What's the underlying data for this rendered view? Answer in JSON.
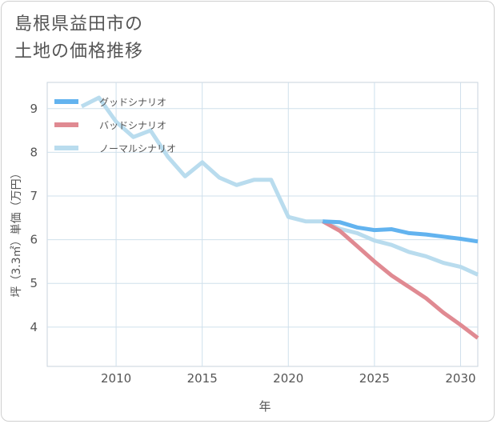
{
  "title_lines": [
    "島根県益田市の",
    "土地の価格推移"
  ],
  "chart_data": {
    "type": "line",
    "title": "島根県益田市の土地の価格推移",
    "xlabel": "年",
    "ylabel": "坪（3.3㎡）単価（万円）",
    "xlim": [
      2006,
      2031
    ],
    "ylim": [
      3.1,
      9.6
    ],
    "xticks": [
      2010,
      2015,
      2020,
      2025,
      2030
    ],
    "yticks": [
      4,
      5,
      6,
      7,
      8,
      9
    ],
    "grid": true,
    "legend_position": "top-left",
    "series": [
      {
        "name": "グッドシナリオ",
        "color": "#62b3ef",
        "x": [
          2022,
          2023,
          2024,
          2025,
          2026,
          2027,
          2028,
          2029,
          2030,
          2031
        ],
        "y": [
          6.42,
          6.4,
          6.28,
          6.22,
          6.24,
          6.15,
          6.12,
          6.07,
          6.02,
          5.96
        ]
      },
      {
        "name": "バッドシナリオ",
        "color": "#e08a92",
        "x": [
          2022,
          2023,
          2024,
          2025,
          2026,
          2027,
          2028,
          2029,
          2030,
          2031
        ],
        "y": [
          6.42,
          6.2,
          5.85,
          5.5,
          5.18,
          4.92,
          4.66,
          4.33,
          4.05,
          3.75
        ]
      },
      {
        "name": "ノーマルシナリオ",
        "color": "#b9dcee",
        "x": [
          2008,
          2009,
          2010,
          2011,
          2012,
          2013,
          2014,
          2015,
          2016,
          2017,
          2018,
          2019,
          2020,
          2021,
          2022,
          2023,
          2024,
          2025,
          2026,
          2027,
          2028,
          2029,
          2030,
          2031
        ],
        "y": [
          9.05,
          9.25,
          8.7,
          8.35,
          8.5,
          7.9,
          7.45,
          7.77,
          7.42,
          7.25,
          7.37,
          7.37,
          6.52,
          6.42,
          6.42,
          6.25,
          6.15,
          5.98,
          5.88,
          5.72,
          5.62,
          5.47,
          5.38,
          5.2
        ]
      }
    ]
  }
}
